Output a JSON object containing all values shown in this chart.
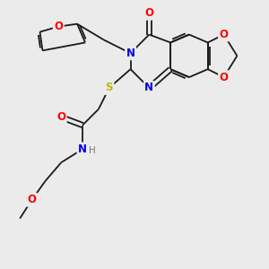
{
  "bg_color": "#ebebeb",
  "bond_color": "#1a1a1a",
  "atom_colors": {
    "N": "#0000ee",
    "O": "#ff0000",
    "S": "#bbbb00",
    "H": "#777777",
    "C": "#1a1a1a"
  },
  "font_size": 8.5,
  "fig_size": [
    3.0,
    3.0
  ],
  "dpi": 100
}
